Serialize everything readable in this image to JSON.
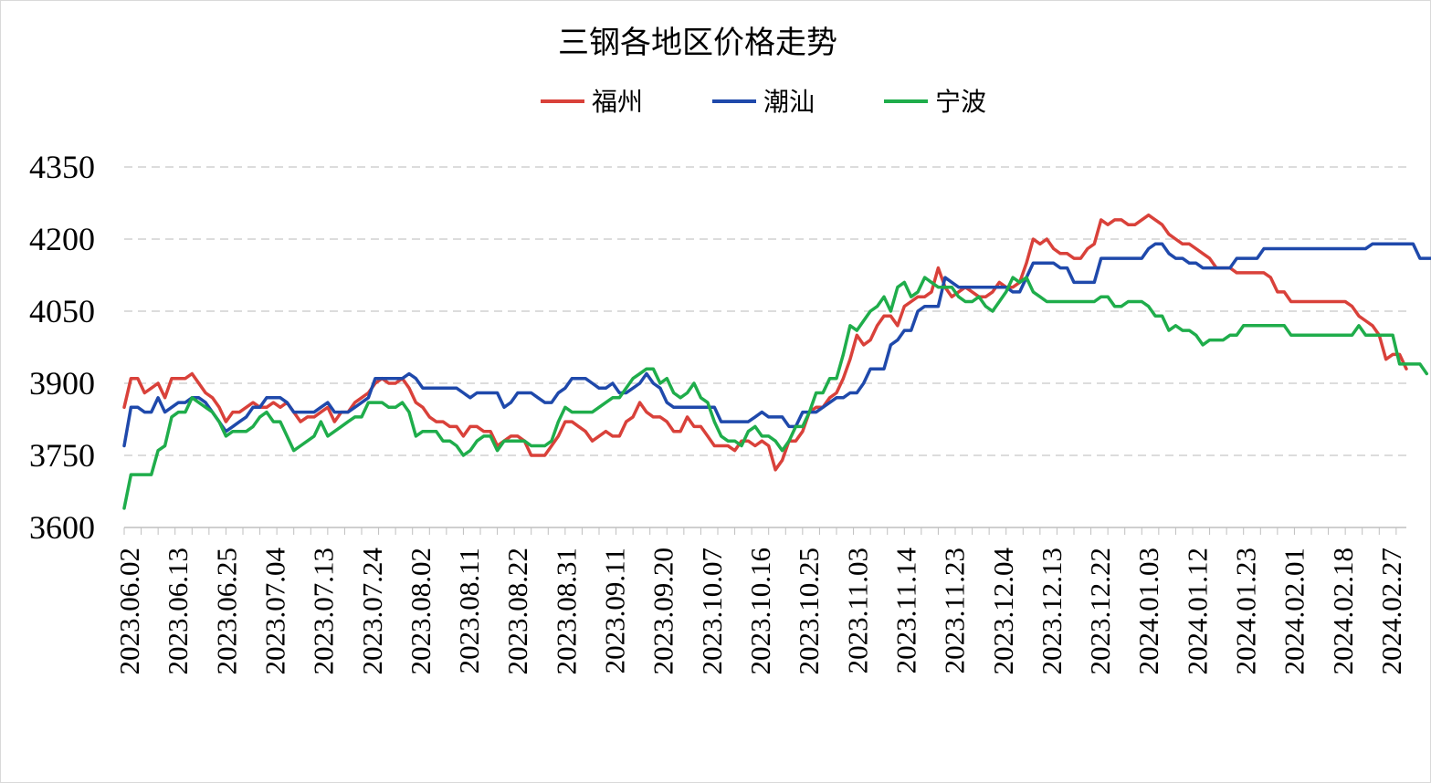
{
  "chart_data": {
    "type": "line",
    "title": "三钢各地区价格走势",
    "xlabel": "",
    "ylabel": "",
    "ylim": [
      3600,
      4350
    ],
    "yticks": [
      3600,
      3750,
      3900,
      4050,
      4200,
      4350
    ],
    "grid": "horizontal dashed",
    "legend_position": "top",
    "x_tick_labels": [
      "2023.06.02",
      "2023.06.13",
      "2023.06.25",
      "2023.07.04",
      "2023.07.13",
      "2023.07.24",
      "2023.08.02",
      "2023.08.11",
      "2023.08.22",
      "2023.08.31",
      "2023.09.11",
      "2023.09.20",
      "2023.10.07",
      "2023.10.16",
      "2023.10.25",
      "2023.11.03",
      "2023.11.14",
      "2023.11.23",
      "2023.12.04",
      "2023.12.13",
      "2023.12.22",
      "2024.01.03",
      "2024.01.12",
      "2024.01.23",
      "2024.02.01",
      "2024.02.18",
      "2024.02.27"
    ],
    "series": [
      {
        "name": "福州",
        "color": "#d9413a",
        "values": [
          3850,
          3910,
          3910,
          3880,
          3890,
          3900,
          3870,
          3910,
          3910,
          3910,
          3920,
          3900,
          3880,
          3870,
          3850,
          3820,
          3840,
          3840,
          3850,
          3860,
          3850,
          3850,
          3860,
          3850,
          3860,
          3840,
          3820,
          3830,
          3830,
          3840,
          3850,
          3820,
          3840,
          3840,
          3860,
          3870,
          3880,
          3900,
          3910,
          3900,
          3900,
          3910,
          3890,
          3860,
          3850,
          3830,
          3820,
          3820,
          3810,
          3810,
          3790,
          3810,
          3810,
          3800,
          3800,
          3770,
          3780,
          3790,
          3790,
          3780,
          3750,
          3750,
          3750,
          3770,
          3790,
          3820,
          3820,
          3810,
          3800,
          3780,
          3790,
          3800,
          3790,
          3790,
          3820,
          3830,
          3860,
          3840,
          3830,
          3830,
          3820,
          3800,
          3800,
          3830,
          3810,
          3810,
          3790,
          3770,
          3770,
          3770,
          3760,
          3780,
          3780,
          3770,
          3780,
          3770,
          3720,
          3740,
          3780,
          3780,
          3800,
          3840,
          3850,
          3850,
          3870,
          3880,
          3910,
          3950,
          4000,
          3980,
          3990,
          4020,
          4040,
          4040,
          4020,
          4060,
          4070,
          4080,
          4080,
          4090,
          4140,
          4100,
          4080,
          4090,
          4100,
          4090,
          4080,
          4080,
          4090,
          4110,
          4100,
          4100,
          4110,
          4150,
          4200,
          4190,
          4200,
          4180,
          4170,
          4170,
          4160,
          4160,
          4180,
          4190,
          4240,
          4230,
          4240,
          4240,
          4230,
          4230,
          4240,
          4250,
          4240,
          4230,
          4210,
          4200,
          4190,
          4190,
          4180,
          4170,
          4160,
          4140,
          4140,
          4140,
          4130,
          4130,
          4130,
          4130,
          4130,
          4120,
          4090,
          4090,
          4070,
          4070,
          4070,
          4070,
          4070,
          4070,
          4070,
          4070,
          4070,
          4060,
          4040,
          4030,
          4020,
          4000,
          3950,
          3960,
          3960,
          3930
        ]
      },
      {
        "name": "潮汕",
        "color": "#1f49ab",
        "values": [
          3770,
          3850,
          3850,
          3840,
          3840,
          3870,
          3840,
          3850,
          3860,
          3860,
          3870,
          3870,
          3860,
          3840,
          3820,
          3800,
          3810,
          3820,
          3830,
          3850,
          3850,
          3870,
          3870,
          3870,
          3860,
          3840,
          3840,
          3840,
          3840,
          3850,
          3860,
          3840,
          3840,
          3840,
          3850,
          3860,
          3870,
          3910,
          3910,
          3910,
          3910,
          3910,
          3920,
          3910,
          3890,
          3890,
          3890,
          3890,
          3890,
          3890,
          3880,
          3870,
          3880,
          3880,
          3880,
          3880,
          3850,
          3860,
          3880,
          3880,
          3880,
          3870,
          3860,
          3860,
          3880,
          3890,
          3910,
          3910,
          3910,
          3900,
          3890,
          3890,
          3900,
          3880,
          3880,
          3890,
          3900,
          3920,
          3900,
          3890,
          3860,
          3850,
          3850,
          3850,
          3850,
          3850,
          3850,
          3850,
          3820,
          3820,
          3820,
          3820,
          3820,
          3830,
          3840,
          3830,
          3830,
          3830,
          3810,
          3810,
          3840,
          3840,
          3840,
          3850,
          3860,
          3870,
          3870,
          3880,
          3880,
          3900,
          3930,
          3930,
          3930,
          3980,
          3990,
          4010,
          4010,
          4050,
          4060,
          4060,
          4060,
          4120,
          4110,
          4100,
          4100,
          4100,
          4100,
          4100,
          4100,
          4100,
          4100,
          4090,
          4090,
          4120,
          4150,
          4150,
          4150,
          4150,
          4140,
          4140,
          4110,
          4110,
          4110,
          4110,
          4160,
          4160,
          4160,
          4160,
          4160,
          4160,
          4160,
          4180,
          4190,
          4190,
          4170,
          4160,
          4160,
          4150,
          4150,
          4140,
          4140,
          4140,
          4140,
          4140,
          4160,
          4160,
          4160,
          4160,
          4180,
          4180,
          4180,
          4180,
          4180,
          4180,
          4180,
          4180,
          4180,
          4180,
          4180,
          4180,
          4180,
          4180,
          4180,
          4180,
          4190,
          4190,
          4190,
          4190,
          4190,
          4190,
          4190,
          4160,
          4160,
          4160,
          4160,
          4160
        ]
      },
      {
        "name": "宁波",
        "color": "#1fad4b",
        "values": [
          3640,
          3710,
          3710,
          3710,
          3710,
          3760,
          3770,
          3830,
          3840,
          3840,
          3870,
          3860,
          3850,
          3840,
          3820,
          3790,
          3800,
          3800,
          3800,
          3810,
          3830,
          3840,
          3820,
          3820,
          3790,
          3760,
          3770,
          3780,
          3790,
          3820,
          3790,
          3800,
          3810,
          3820,
          3830,
          3830,
          3860,
          3860,
          3860,
          3850,
          3850,
          3860,
          3840,
          3790,
          3800,
          3800,
          3800,
          3780,
          3780,
          3770,
          3750,
          3760,
          3780,
          3790,
          3790,
          3760,
          3780,
          3780,
          3780,
          3780,
          3770,
          3770,
          3770,
          3780,
          3820,
          3850,
          3840,
          3840,
          3840,
          3840,
          3850,
          3860,
          3870,
          3870,
          3890,
          3910,
          3920,
          3930,
          3930,
          3900,
          3910,
          3880,
          3870,
          3880,
          3900,
          3870,
          3860,
          3820,
          3790,
          3780,
          3780,
          3770,
          3800,
          3810,
          3790,
          3790,
          3780,
          3760,
          3780,
          3810,
          3810,
          3840,
          3880,
          3880,
          3910,
          3910,
          3960,
          4020,
          4010,
          4030,
          4050,
          4060,
          4080,
          4050,
          4100,
          4110,
          4080,
          4090,
          4120,
          4110,
          4100,
          4100,
          4100,
          4080,
          4070,
          4070,
          4080,
          4060,
          4050,
          4070,
          4090,
          4120,
          4110,
          4120,
          4090,
          4080,
          4070,
          4070,
          4070,
          4070,
          4070,
          4070,
          4070,
          4070,
          4080,
          4080,
          4060,
          4060,
          4070,
          4070,
          4070,
          4060,
          4040,
          4040,
          4010,
          4020,
          4010,
          4010,
          4000,
          3980,
          3990,
          3990,
          3990,
          4000,
          4000,
          4020,
          4020,
          4020,
          4020,
          4020,
          4020,
          4020,
          4000,
          4000,
          4000,
          4000,
          4000,
          4000,
          4000,
          4000,
          4000,
          4000,
          4020,
          4000,
          4000,
          4000,
          4000,
          4000,
          3940,
          3940,
          3940,
          3940,
          3920
        ]
      }
    ]
  }
}
